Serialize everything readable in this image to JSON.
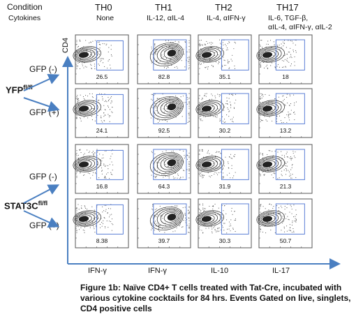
{
  "header": {
    "condition_label": "Condition",
    "cytokines_label": "Cytokines",
    "y_axis_label": "CD4"
  },
  "columns": [
    {
      "title": "TH0",
      "cytokines": [
        "None"
      ],
      "x_axis": "IFN-γ"
    },
    {
      "title": "TH1",
      "cytokines": [
        "IL-12, αIL-4"
      ],
      "x_axis": "IFN-γ"
    },
    {
      "title": "TH2",
      "cytokines": [
        "IL-4, αIFN-γ"
      ],
      "x_axis": "IL-10"
    },
    {
      "title": "TH17",
      "cytokines": [
        "IL-6, TGF-β,",
        "αIL-4, αIFN-γ, αIL-2"
      ],
      "x_axis": "IL-17"
    }
  ],
  "rows": [
    {
      "label": "GFP (-)",
      "genotype": "YFP"
    },
    {
      "label": "GFP (+)",
      "genotype": "YFP"
    },
    {
      "label": "GFP (-)",
      "genotype": "STAT3C"
    },
    {
      "label": "GFP (+)",
      "genotype": "STAT3C"
    }
  ],
  "genotypes": [
    {
      "name": "YFP",
      "sup": "fl/fl"
    },
    {
      "name": "STAT3C",
      "sup": "fl/fl"
    }
  ],
  "gate_values": [
    [
      "26.5",
      "82.8",
      "35.1",
      "18"
    ],
    [
      "24.1",
      "92.5",
      "30.2",
      "13.2"
    ],
    [
      "16.8",
      "64.3",
      "31.9",
      "21.3"
    ],
    [
      "8.38",
      "39.7",
      "30.3",
      "50.7"
    ]
  ],
  "caption": {
    "lines": [
      "Figure 1b: Naïve CD4+ T cells treated with Tat-Cre, incubated with",
      "various cytokine cocktails for 84 hrs. Events Gated on live, singlets,",
      "CD4 positive cells"
    ]
  },
  "colors": {
    "axis": "#4a7fc1",
    "gate": "#5b7fd6",
    "contour": "#222222"
  }
}
